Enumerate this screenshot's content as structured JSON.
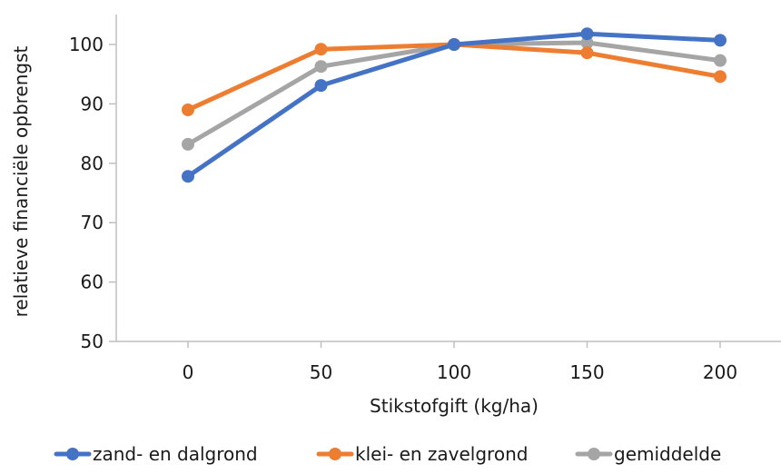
{
  "chart_data": {
    "type": "line",
    "title": "",
    "xlabel": "Stikstofgift (kg/ha)",
    "ylabel": "relatieve financiële opbrengst",
    "categories": [
      "0",
      "50",
      "100",
      "150",
      "200"
    ],
    "x": [
      0,
      50,
      100,
      150,
      200
    ],
    "ylim": [
      50,
      105
    ],
    "yticks": [
      50,
      60,
      70,
      80,
      90,
      100
    ],
    "grid": false,
    "legend_position": "bottom",
    "series": [
      {
        "name": "zand- en dalgrond",
        "color": "#4472c4",
        "values": [
          77.8,
          93.1,
          100,
          101.8,
          100.7
        ]
      },
      {
        "name": "klei- en zavelgrond",
        "color": "#ed7d31",
        "values": [
          89.0,
          99.2,
          100,
          98.6,
          94.6
        ]
      },
      {
        "name": "gemiddelde",
        "color": "#a5a5a5",
        "values": [
          83.2,
          96.3,
          100,
          100.3,
          97.3
        ]
      }
    ]
  }
}
